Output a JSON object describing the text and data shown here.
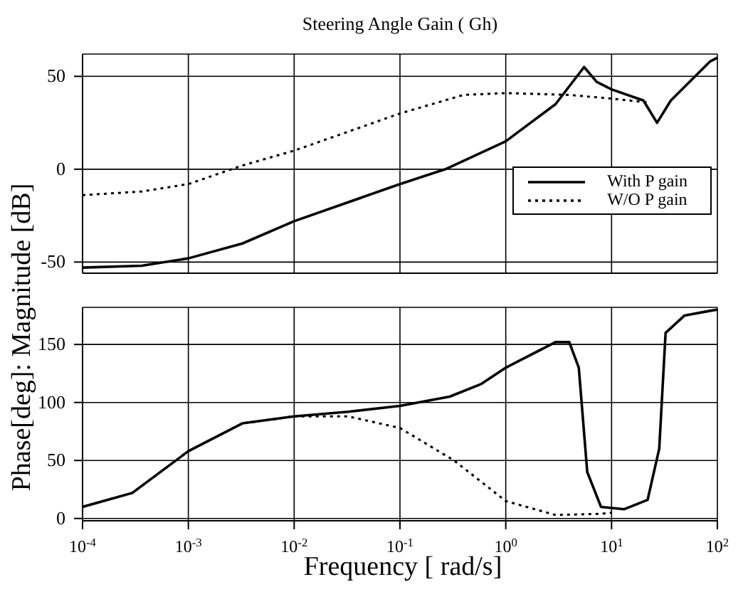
{
  "chart_data": [
    {
      "type": "line",
      "title": "Steering Angle Gain ( Gh)",
      "log": "x",
      "grid": true,
      "legend": "right",
      "tick_labels": "y",
      "marker": "none",
      "xlim": [
        0.0001,
        100
      ],
      "xticks": [
        {
          "value": 0.0001,
          "label": null
        },
        {
          "value": 0.001,
          "label": null
        },
        {
          "value": 0.01,
          "label": null
        },
        {
          "value": 0.1,
          "label": null
        },
        {
          "value": 1,
          "label": null
        },
        {
          "value": 10,
          "label": null
        },
        {
          "value": 100,
          "label": null
        }
      ],
      "ylim": [
        -56,
        62
      ],
      "yticks": [
        -50,
        0,
        50
      ],
      "series": [
        {
          "name": "With P gain",
          "color": "#000000",
          "line_style": "solid",
          "x": [
            0.0001,
            0.000363,
            0.001,
            0.00324,
            0.01,
            0.1,
            0.269,
            1,
            2.95,
            5.5,
            7.24,
            10,
            20,
            26.9,
            36.3,
            85.1,
            100
          ],
          "values": [
            -53,
            -52,
            -48,
            -40,
            -28,
            -8,
            0,
            15,
            35,
            55,
            47,
            43,
            37,
            25,
            37,
            58,
            60
          ]
        },
        {
          "name": "W/O P gain",
          "color": "#000000",
          "line_style": "dotted",
          "x": [
            0.0001,
            0.000363,
            0.001,
            0.00324,
            0.01,
            0.1,
            0.398,
            1,
            3.98,
            10,
            21.9
          ],
          "values": [
            -14,
            -12,
            -8,
            2,
            10,
            30,
            40,
            41,
            40,
            38,
            36
          ]
        }
      ]
    },
    {
      "type": "line",
      "xlabel": "Frequency [ rad/s]",
      "ylabel": "Phase[deg]: Magnitude [dB]",
      "log": "x",
      "grid": true,
      "marker": "none",
      "xlim": [
        0.0001,
        100
      ],
      "xticks": [
        {
          "value": 0.0001,
          "label": "10$^{-4}$"
        },
        {
          "value": 0.001,
          "label": "10$^{-3}$"
        },
        {
          "value": 0.01,
          "label": "10$^{-2}$"
        },
        {
          "value": 0.1,
          "label": "10$^{-1}$"
        },
        {
          "value": 1,
          "label": "10$^{0}$"
        },
        {
          "value": 10,
          "label": "10$^{1}$"
        },
        {
          "value": 100,
          "label": "10$^{2}$"
        }
      ],
      "ylim": [
        -2,
        182
      ],
      "yticks": [
        0,
        50,
        100,
        150
      ],
      "series": [
        {
          "color": "#000000",
          "line_style": "solid",
          "x": [
            0.0001,
            0.000295,
            0.001,
            0.00324,
            0.01,
            0.0324,
            0.1,
            0.295,
            0.589,
            1,
            2.95,
            3.98,
            4.9,
            5.89,
            7.94,
            13.2,
            21.9,
            28.2,
            32.4,
            49,
            85.1,
            100
          ],
          "values": [
            10,
            22,
            58,
            82,
            88,
            92,
            97,
            105,
            116,
            130,
            152,
            152,
            130,
            40,
            10,
            8,
            16,
            60,
            160,
            175,
            179,
            180
          ]
        },
        {
          "color": "#000000",
          "line_style": "dotted",
          "x": [
            0.0001,
            0.000295,
            0.001,
            0.00324,
            0.01,
            0.0324,
            0.1,
            0.324,
            1,
            2.95,
            7.94,
            10
          ],
          "values": [
            10,
            22,
            58,
            82,
            88,
            88,
            78,
            50,
            15,
            3,
            4,
            5
          ]
        }
      ]
    }
  ]
}
